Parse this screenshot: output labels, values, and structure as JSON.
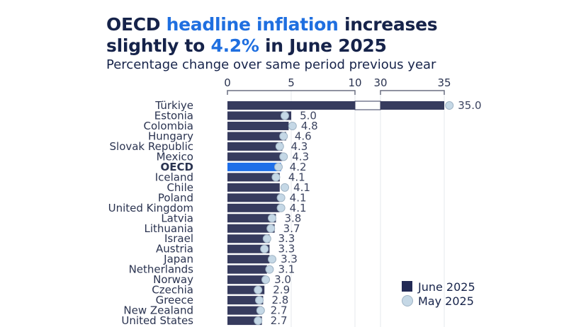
{
  "title": {
    "part1": "OECD ",
    "highlight1": "headline inflation",
    "part2": " increases",
    "line2a": "slightly to ",
    "highlight2": "4.2%",
    "line2b": " in June 2025"
  },
  "subtitle": "Percentage change over same period previous year",
  "chart_data": {
    "type": "bar",
    "title": "OECD headline inflation increases slightly to 4.2% in June 2025",
    "subtitle": "Percentage change over same period previous year",
    "axis": {
      "segments": [
        [
          0,
          10
        ],
        [
          30,
          35
        ]
      ],
      "ticks": [
        0,
        5,
        10,
        30,
        35
      ],
      "tick_labels": [
        "0",
        "5",
        "10",
        "30",
        "35"
      ],
      "position": "top"
    },
    "categories": [
      "Türkiye",
      "Estonia",
      "Colombia",
      "Hungary",
      "Slovak Republic",
      "Mexico",
      "OECD",
      "Iceland",
      "Chile",
      "Poland",
      "United Kingdom",
      "Latvia",
      "Lithuania",
      "Israel",
      "Austria",
      "Japan",
      "Netherlands",
      "Norway",
      "Czechia",
      "Greece",
      "New Zealand",
      "United States"
    ],
    "highlight_category": "OECD",
    "series": [
      {
        "name": "June 2025",
        "type": "bar",
        "color": "#363b5e",
        "highlight_color": "#1f6fe8",
        "values": [
          35.0,
          5.0,
          4.8,
          4.6,
          4.3,
          4.3,
          4.2,
          4.1,
          4.1,
          4.1,
          4.1,
          3.8,
          3.7,
          3.3,
          3.3,
          3.3,
          3.1,
          3.0,
          2.9,
          2.8,
          2.7,
          2.7
        ],
        "labels": [
          "35.0",
          "5.0",
          "4.8",
          "4.6",
          "4.3",
          "4.3",
          "4.2",
          "4.1",
          "4.1",
          "4.1",
          "4.1",
          "3.8",
          "3.7",
          "3.3",
          "3.3",
          "3.3",
          "3.1",
          "3.0",
          "2.9",
          "2.8",
          "2.7",
          "2.7"
        ]
      },
      {
        "name": "May 2025",
        "type": "dot",
        "color": "#c5d8e6",
        "values": [
          35.4,
          4.5,
          5.1,
          4.4,
          4.1,
          4.4,
          4.0,
          3.8,
          4.5,
          4.2,
          4.2,
          3.5,
          3.4,
          3.1,
          2.9,
          3.5,
          3.3,
          3.0,
          2.4,
          2.5,
          2.6,
          2.4
        ]
      }
    ],
    "legend": {
      "placement": "bottom-right",
      "entries": [
        "June 2025",
        "May 2025"
      ]
    }
  }
}
